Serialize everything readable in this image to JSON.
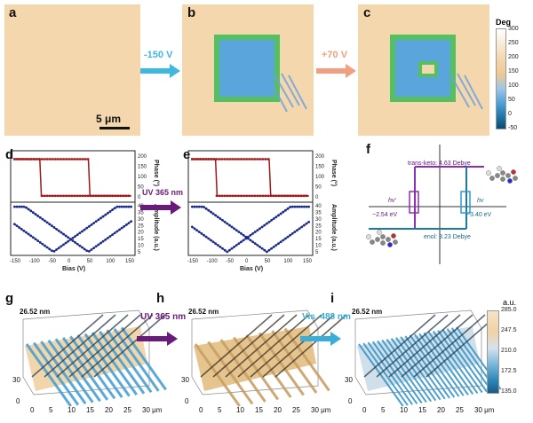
{
  "panels": {
    "a": "a",
    "b": "b",
    "c": "c",
    "d": "d",
    "e": "e",
    "f": "f",
    "g": "g",
    "h": "h",
    "i": "i"
  },
  "top_row": {
    "arrow1_text": "-150 V",
    "arrow2_text": "+70 V",
    "scalebar": "5 μm",
    "colorbar": {
      "title": "Deg",
      "ticks": [
        "300",
        "250",
        "200",
        "150",
        "100",
        "50",
        "0",
        "-50"
      ]
    }
  },
  "middle_row": {
    "arrow_text": "UV 365 nm",
    "phase_label": "Phase (°)",
    "amplitude_label": "Amplitude (a.u.)",
    "bias_label": "Bias (V)",
    "phase_ticks": [
      "200",
      "150",
      "100",
      "50",
      "0"
    ],
    "amplitude_ticks": [
      "40",
      "35",
      "30",
      "25",
      "20",
      "15",
      "10",
      "5"
    ],
    "bias_ticks": [
      "-150",
      "-100",
      "-50",
      "0",
      "50",
      "100",
      "150"
    ]
  },
  "energy_diagram": {
    "trans_label": "trans-keto: 4.63 Debye",
    "enol_label": "enol: 3.23 Debye",
    "left_energy": "~2.54 eV",
    "right_energy": "~3.40 eV",
    "hv_prime": "hv'",
    "hv": "hv"
  },
  "bottom_row": {
    "height_label": "26.52 nm",
    "arrow1_text": "UV 365 nm",
    "arrow2_text": "Vis. 488 nm",
    "axis_ticks": [
      "0",
      "5",
      "10",
      "15",
      "20",
      "25",
      "30 μm"
    ],
    "depth_ticks": [
      "0",
      "30"
    ],
    "colorbar": {
      "title": "a.u.",
      "ticks": [
        "285.0",
        "247.5",
        "210.0",
        "172.5",
        "135.0"
      ]
    }
  },
  "colors": {
    "phase_curve": "#a01818",
    "amp_curve": "#1a2a8a",
    "arrow_blue": "#3fb8e0",
    "arrow_orange": "#f0a080",
    "arrow_purple": "#6a1a7a",
    "arrow_cyan": "#3aaed8",
    "film": "#f4d7ad",
    "domain_blue": "#5aa5dc",
    "domain_green": "#55c060"
  }
}
